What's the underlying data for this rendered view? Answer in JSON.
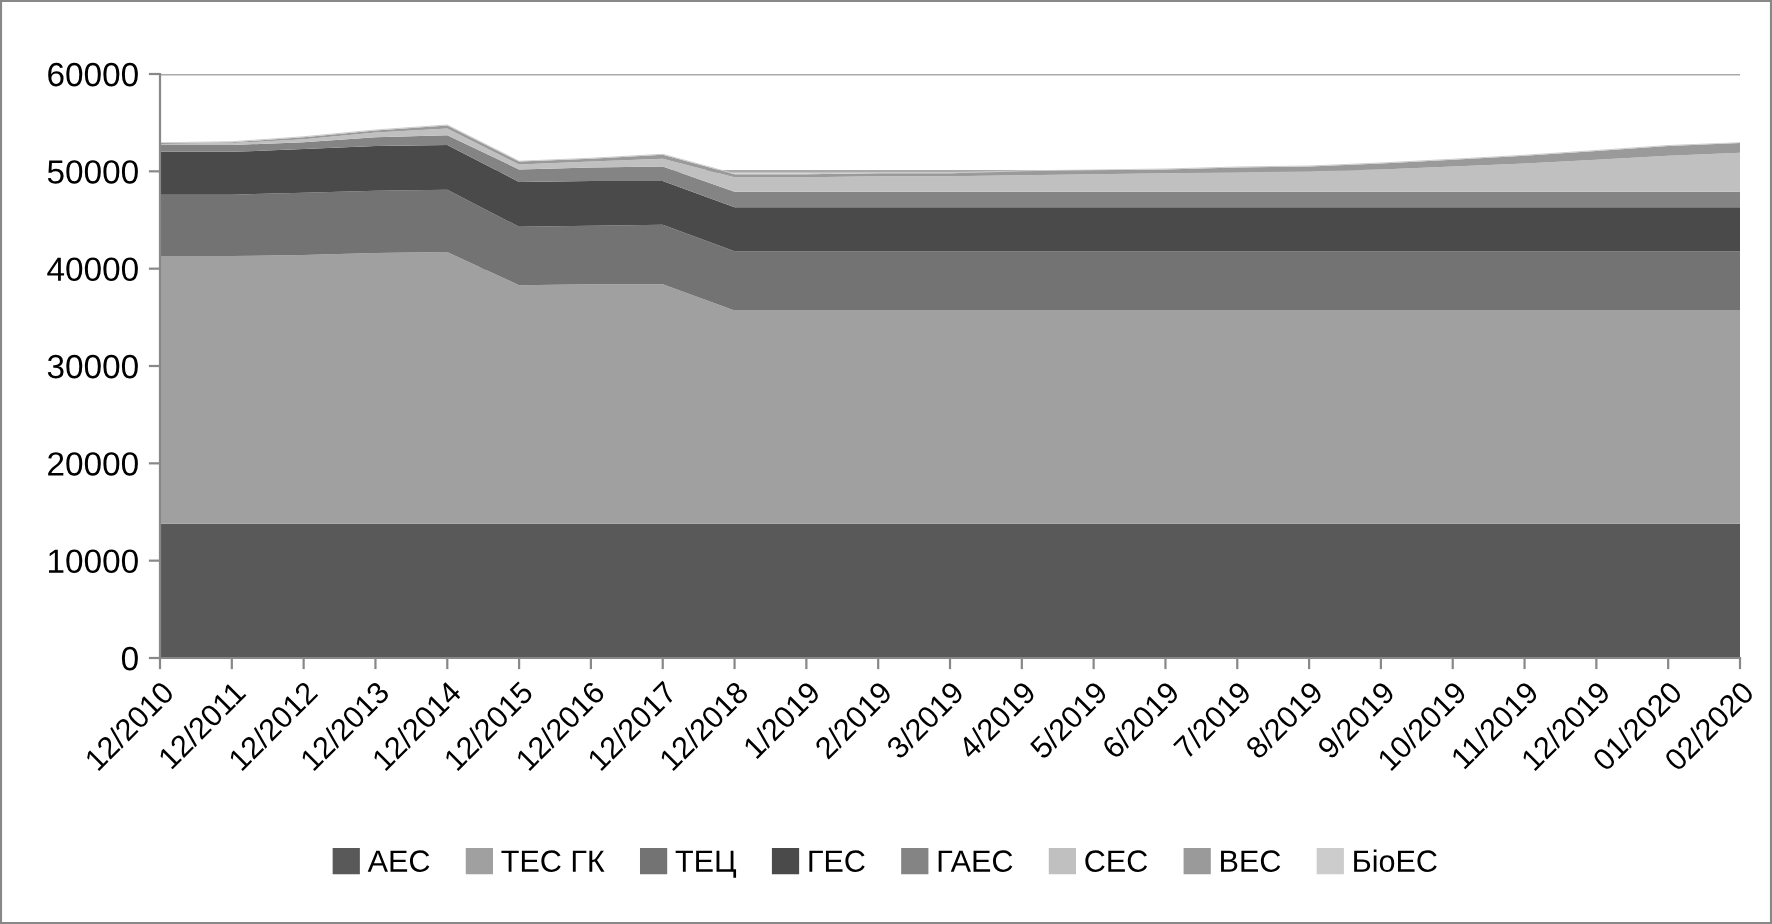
{
  "chart_data": {
    "type": "area",
    "stacked": true,
    "categories": [
      "12/2010",
      "12/2011",
      "12/2012",
      "12/2013",
      "12/2014",
      "12/2015",
      "12/2016",
      "12/2017",
      "12/2018",
      "1/2019",
      "2/2019",
      "3/2019",
      "4/2019",
      "5/2019",
      "6/2019",
      "7/2019",
      "8/2019",
      "9/2019",
      "10/2019",
      "11/2019",
      "12/2019",
      "01/2020",
      "02/2020"
    ],
    "series": [
      {
        "name": "АЕС",
        "color": "#595959",
        "values": [
          13800,
          13800,
          13800,
          13800,
          13800,
          13800,
          13800,
          13800,
          13800,
          13800,
          13800,
          13800,
          13800,
          13800,
          13800,
          13800,
          13800,
          13800,
          13800,
          13800,
          13800,
          13800,
          13800
        ]
      },
      {
        "name": "ТЕС ГК",
        "color": "#a0a0a0",
        "values": [
          27500,
          27500,
          27600,
          27800,
          27900,
          24500,
          24600,
          24600,
          21900,
          21900,
          21900,
          21900,
          21900,
          21900,
          21900,
          21900,
          21900,
          21900,
          21900,
          21900,
          21900,
          21900,
          21900
        ]
      },
      {
        "name": "ТЕЦ",
        "color": "#737373",
        "values": [
          6300,
          6300,
          6400,
          6400,
          6400,
          6000,
          6000,
          6100,
          6100,
          6100,
          6100,
          6100,
          6100,
          6100,
          6100,
          6100,
          6100,
          6100,
          6100,
          6100,
          6100,
          6100,
          6100
        ]
      },
      {
        "name": "ГЕС",
        "color": "#4a4a4a",
        "values": [
          4400,
          4400,
          4500,
          4600,
          4600,
          4600,
          4600,
          4500,
          4500,
          4500,
          4500,
          4500,
          4500,
          4500,
          4500,
          4500,
          4500,
          4500,
          4500,
          4500,
          4500,
          4500,
          4500
        ]
      },
      {
        "name": "ГАЕС",
        "color": "#848484",
        "values": [
          700,
          700,
          700,
          900,
          1000,
          1300,
          1400,
          1500,
          1600,
          1600,
          1600,
          1600,
          1600,
          1600,
          1600,
          1600,
          1600,
          1600,
          1600,
          1600,
          1600,
          1600,
          1600
        ]
      },
      {
        "name": "СЕС",
        "color": "#c0c0c0",
        "values": [
          100,
          200,
          300,
          500,
          700,
          500,
          600,
          800,
          1500,
          1500,
          1600,
          1600,
          1700,
          1800,
          1900,
          2000,
          2100,
          2300,
          2600,
          2900,
          3300,
          3700,
          4000
        ]
      },
      {
        "name": "ВЕС",
        "color": "#9a9a9a",
        "values": [
          100,
          100,
          200,
          200,
          300,
          300,
          300,
          400,
          300,
          300,
          300,
          300,
          400,
          400,
          400,
          500,
          500,
          600,
          700,
          800,
          900,
          1000,
          1000
        ]
      },
      {
        "name": "БіоЕС",
        "color": "#cccccc",
        "values": [
          100,
          100,
          100,
          100,
          100,
          100,
          100,
          100,
          100,
          100,
          100,
          100,
          100,
          100,
          100,
          100,
          100,
          100,
          100,
          100,
          100,
          100,
          100
        ]
      }
    ],
    "ylim": [
      0,
      60000
    ],
    "yticks": [
      0,
      10000,
      20000,
      30000,
      40000,
      50000,
      60000
    ],
    "grid": "y",
    "legend": "bottom"
  }
}
